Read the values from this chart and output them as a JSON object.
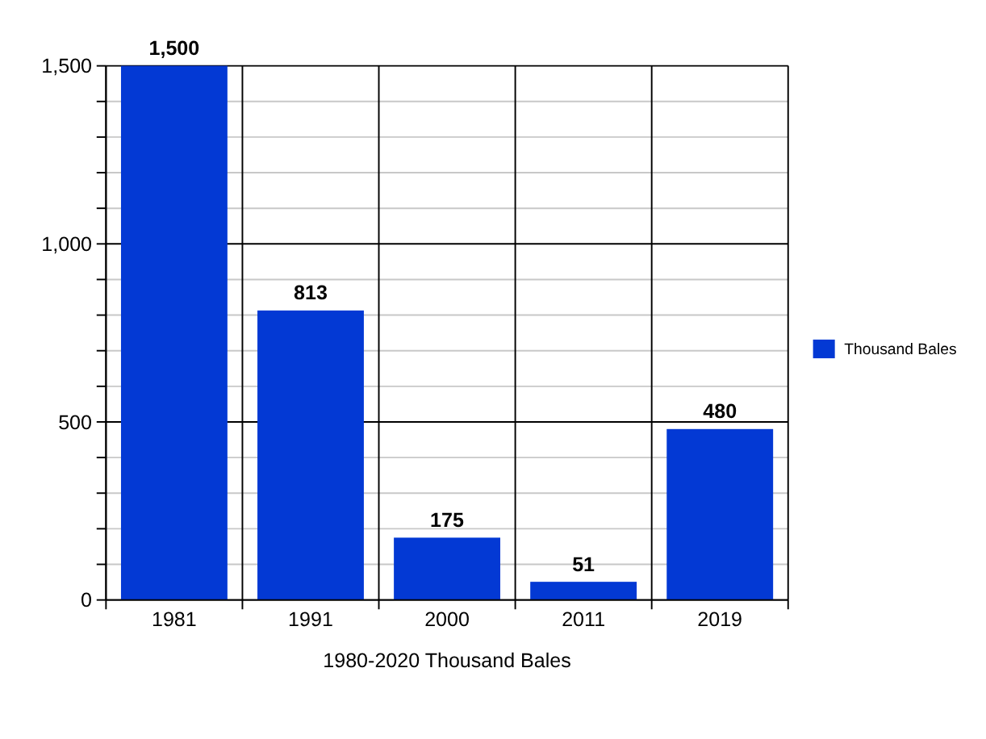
{
  "chart_data": {
    "type": "bar",
    "xlabel": "1980-2020 Thousand Bales",
    "categories": [
      "1981",
      "1991",
      "2000",
      "2011",
      "2019"
    ],
    "series": [
      {
        "name": "Thousand Bales",
        "color": "#0339d4",
        "values": [
          1500,
          813,
          175,
          51,
          480
        ],
        "value_labels": [
          "1,500",
          "813",
          "175",
          "51",
          "480"
        ]
      }
    ],
    "ylim": [
      0,
      1500
    ],
    "yticks": [
      0,
      {
        "value": 100,
        "label": null
      },
      {
        "value": 200,
        "label": null
      },
      {
        "value": 300,
        "label": null
      },
      {
        "value": 400,
        "label": null
      },
      500,
      {
        "value": 600,
        "label": null
      },
      {
        "value": 700,
        "label": null
      },
      {
        "value": 800,
        "label": null
      },
      {
        "value": 900,
        "label": null
      },
      {
        "value": 1000,
        "label": "1,000"
      },
      {
        "value": 1100,
        "label": null
      },
      {
        "value": 1200,
        "label": null
      },
      {
        "value": 1300,
        "label": null
      },
      {
        "value": 1400,
        "label": null
      },
      {
        "value": 1500,
        "label": "1,500"
      }
    ],
    "grid": true,
    "legend": "right"
  }
}
